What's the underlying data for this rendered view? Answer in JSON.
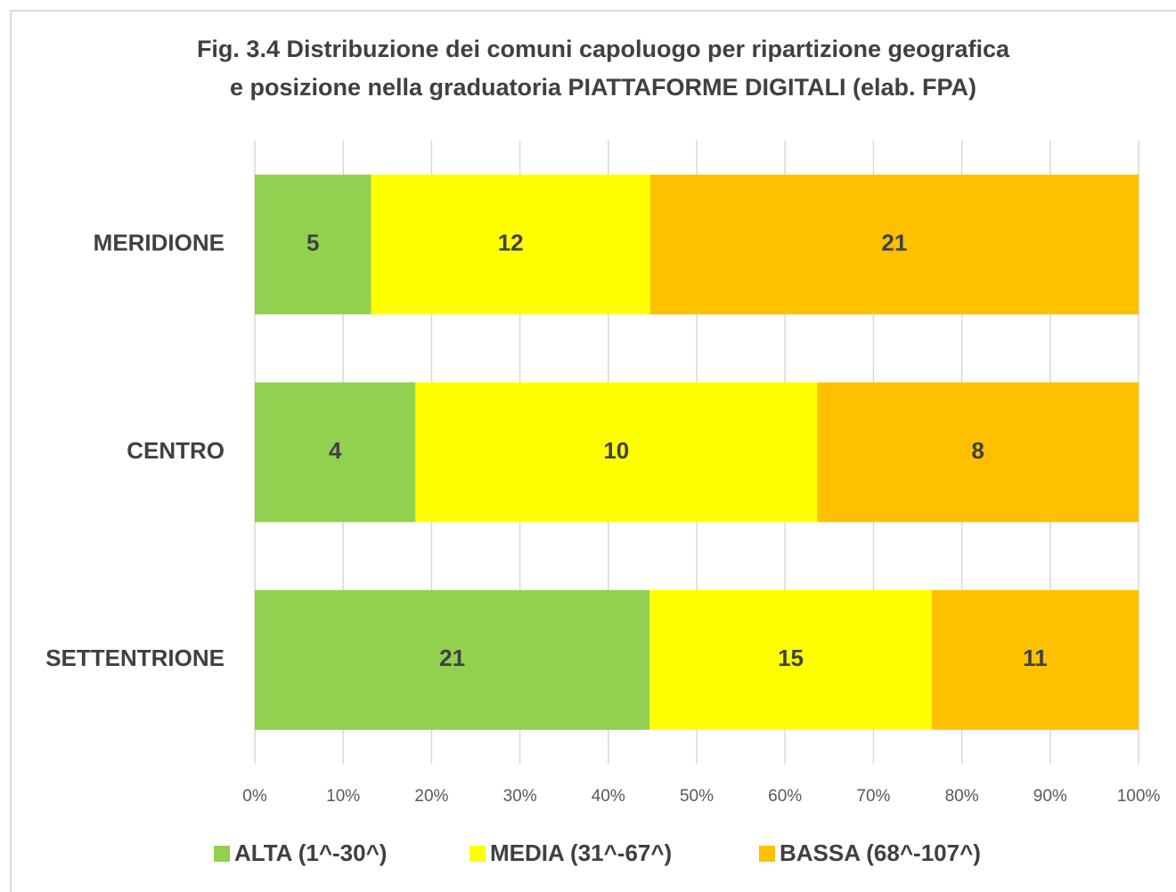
{
  "chart_data": {
    "type": "stacked_percent_barh",
    "title": [
      "Fig. 3.4  Distribuzione dei comuni capoluogo per ripartizione geografica",
      "e posizione nella graduatoria PIATTAFORME DIGITALI (elab. FPA)"
    ],
    "categories": [
      "MERIDIONE",
      "CENTRO",
      "SETTENTRIONE"
    ],
    "series": [
      {
        "name": "ALTA (1^-30^)",
        "color": "#92d050",
        "values": [
          5,
          4,
          21
        ]
      },
      {
        "name": "MEDIA (31^-67^)",
        "color": "#ffff00",
        "values": [
          12,
          10,
          15
        ]
      },
      {
        "name": "BASSA (68^-107^)",
        "color": "#ffc000",
        "values": [
          21,
          8,
          11
        ]
      }
    ],
    "xlim": [
      0,
      100
    ],
    "xticks": [
      {
        "value": 0,
        "label": "0%"
      },
      {
        "value": 10,
        "label": "10%"
      },
      {
        "value": 20,
        "label": "20%"
      },
      {
        "value": 30,
        "label": "30%"
      },
      {
        "value": 40,
        "label": "40%"
      },
      {
        "value": 50,
        "label": "50%"
      },
      {
        "value": 60,
        "label": "60%"
      },
      {
        "value": 70,
        "label": "70%"
      },
      {
        "value": 80,
        "label": "80%"
      },
      {
        "value": 90,
        "label": "90%"
      },
      {
        "value": 100,
        "label": "100%"
      }
    ],
    "grid": true,
    "legend": "bottom"
  }
}
